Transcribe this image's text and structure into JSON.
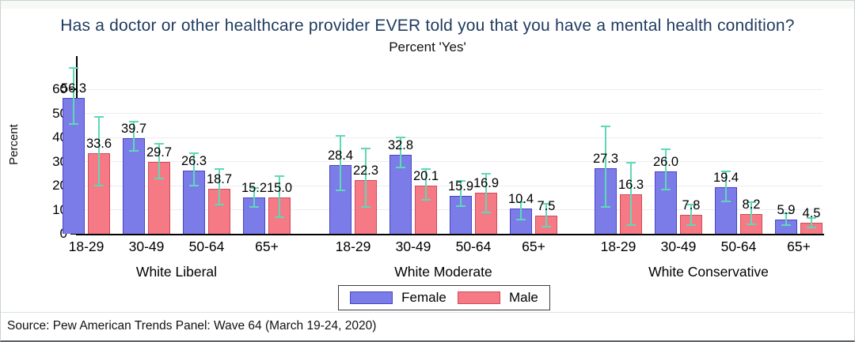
{
  "header": {
    "title": "Has a doctor or other healthcare provider EVER told you that you have a mental health condition?",
    "subtitle": "Percent 'Yes'"
  },
  "chart_data": {
    "type": "bar",
    "title": "Has a doctor or other healthcare provider EVER told you that you have a mental health condition?",
    "subtitle": "Percent 'Yes'",
    "ylabel": "Percent",
    "xlabel": "",
    "yticks": [
      0,
      10,
      20,
      30,
      40,
      50,
      60
    ],
    "ylim": [
      0,
      73.5
    ],
    "grid": true,
    "categories": [
      "18-29",
      "30-49",
      "50-64",
      "65+"
    ],
    "groups": [
      {
        "label": "White Liberal",
        "series": [
          {
            "name": "Female",
            "values": [
              56.3,
              39.7,
              26.3,
              15.2
            ],
            "ci": [
              [
                45.5,
                69.0
              ],
              [
                34.5,
                46.5
              ],
              [
                20.0,
                33.5
              ],
              [
                11.0,
                19.0
              ]
            ]
          },
          {
            "name": "Male",
            "values": [
              33.6,
              29.7,
              18.7,
              15.0
            ],
            "ci": [
              [
                20.0,
                48.5
              ],
              [
                23.0,
                37.5
              ],
              [
                12.0,
                27.0
              ],
              [
                7.0,
                24.0
              ]
            ]
          }
        ]
      },
      {
        "label": "White Moderate",
        "series": [
          {
            "name": "Female",
            "values": [
              28.4,
              32.8,
              15.9,
              10.4
            ],
            "ci": [
              [
                18.0,
                40.5
              ],
              [
                27.5,
                40.0
              ],
              [
                11.5,
                22.0
              ],
              [
                6.0,
                13.0
              ]
            ]
          },
          {
            "name": "Male",
            "values": [
              22.3,
              20.1,
              16.9,
              7.5
            ],
            "ci": [
              [
                11.0,
                35.5
              ],
              [
                14.0,
                27.0
              ],
              [
                9.0,
                25.0
              ],
              [
                3.0,
                12.5
              ]
            ]
          }
        ]
      },
      {
        "label": "White Conservative",
        "series": [
          {
            "name": "Female",
            "values": [
              27.3,
              26.0,
              19.4,
              5.9
            ],
            "ci": [
              [
                11.0,
                44.5
              ],
              [
                18.5,
                35.0
              ],
              [
                13.5,
                26.0
              ],
              [
                3.5,
                8.5
              ]
            ]
          },
          {
            "name": "Male",
            "values": [
              16.3,
              7.8,
              8.2,
              4.5
            ],
            "ci": [
              [
                3.5,
                29.5
              ],
              [
                3.5,
                12.0
              ],
              [
                4.0,
                13.0
              ],
              [
                2.5,
                6.5
              ]
            ]
          }
        ]
      }
    ],
    "legend": {
      "position": "bottom-center",
      "items": [
        {
          "label": "Female",
          "color": "#7b7ce8",
          "border": "#4646c8"
        },
        {
          "label": "Male",
          "color": "#f57a85",
          "border": "#d04b59"
        }
      ]
    },
    "error_bar_color": "#5ed9b6",
    "colors": {
      "title": "#1e3a5f",
      "axis": "#000000",
      "gridline": "#ededf2"
    }
  },
  "footer": {
    "source": "Source: Pew American Trends Panel: Wave 64 (March 19-24, 2020)"
  }
}
